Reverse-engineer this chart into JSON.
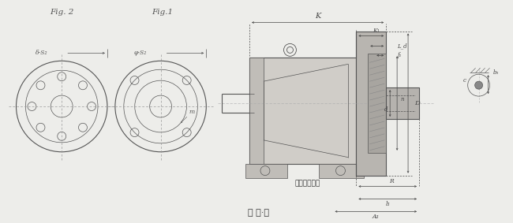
{
  "bg_color": "#ededea",
  "line_color": "#555555",
  "fig2_label": "Fig. 2",
  "fig1_label": "Fig.1",
  "caption": "图 三·二",
  "subtitle": "电机可分离型",
  "body_color": "#d0cdc8",
  "body_color2": "#c0bdb8",
  "flange_color": "#b8b5b0",
  "hatch_color": "#888888",
  "dim_color": "#444444"
}
